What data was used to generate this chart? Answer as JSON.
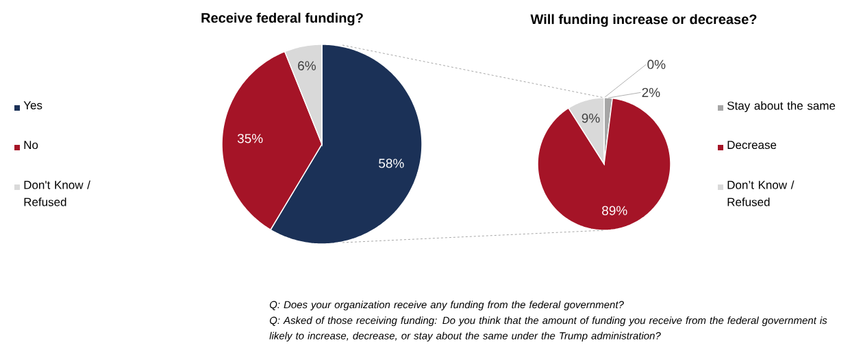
{
  "chart_data": [
    {
      "type": "pie",
      "title": "Receive federal funding?",
      "categories": [
        "Yes",
        "No",
        "Don't Know / Refused"
      ],
      "values": [
        58,
        35,
        6
      ],
      "colors": [
        "#1b3157",
        "#a51427",
        "#d9d9d9"
      ],
      "value_labels": [
        "58%",
        "35%",
        "6%"
      ],
      "legend": "left",
      "annotations": [
        "Q: Does your organization receive any funding from the federal government?",
        "Q: Asked of those receiving funding: Do you think that the amount of funding you receive from the federal government is likely to increase, decrease, or stay about the same under the Trump administration?"
      ]
    },
    {
      "type": "pie",
      "title": "Will funding increase or decrease?",
      "categories": [
        null,
        "Stay about the same",
        "Decrease",
        "Don’t Know / Refused"
      ],
      "values": [
        0,
        2,
        89,
        9
      ],
      "colors": [
        "#7f7f7f",
        "#a6a6a6",
        "#a51427",
        "#d9d9d9"
      ],
      "value_labels": [
        "0%",
        "2%",
        "89%",
        "9%"
      ],
      "legend": "right"
    }
  ]
}
